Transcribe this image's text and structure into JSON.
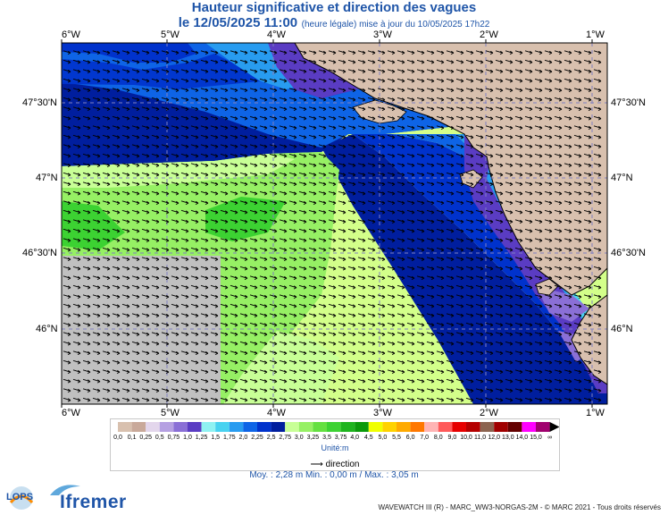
{
  "title": {
    "line1": "Hauteur significative et direction des vagues",
    "date": "le 12/05/2025 11:00",
    "update_note": "(heure légale) mise à jour du 10/05/2025 17h22"
  },
  "axes": {
    "lon_labels": [
      "6°W",
      "5°W",
      "4°W",
      "3°W",
      "2°W",
      "1°W"
    ],
    "lat_labels": [
      "47°30'N",
      "47°N",
      "46°30'N",
      "46°N"
    ]
  },
  "legend": {
    "values": [
      "0,0",
      "0,1",
      "0,25",
      "0,5",
      "0,75",
      "1,0",
      "1,25",
      "1,5",
      "1,75",
      "2,0",
      "2,25",
      "2,5",
      "2,75",
      "3,0",
      "3,25",
      "3,5",
      "3,75",
      "4,0",
      "4,5",
      "5,0",
      "5,5",
      "6,0",
      "7,0",
      "8,0",
      "9,0",
      "10,0",
      "11,0",
      "12,0",
      "13,0",
      "14,0",
      "15,0",
      "∞"
    ],
    "colors": [
      "#d8c0ae",
      "#c9a99a",
      "#e3d6ec",
      "#b5a0e2",
      "#8a6fd6",
      "#5a3cc3",
      "#8ff2f2",
      "#48d2f0",
      "#289cf0",
      "#0e64e6",
      "#0032cc",
      "#001e9e",
      "#c8ff96",
      "#96f064",
      "#64e040",
      "#3cd232",
      "#1eb41e",
      "#0a9a0a",
      "#f0ff00",
      "#ffd200",
      "#ffaa00",
      "#ff7800",
      "#ffb4b4",
      "#ff5a5a",
      "#e60000",
      "#b40000",
      "#8c6450",
      "#a00000",
      "#640000",
      "#ff00ff",
      "#a0006e"
    ],
    "unit_label": "Unité:m",
    "direction_label": "direction"
  },
  "stats": {
    "text": "Moy. : 2,28 m    Min. : 0,00 m / Max. : 3,05 m"
  },
  "footer": {
    "copyright": "WAVEWATCH III (R) - MARC_WW3-NORGAS-2M - © MARC 2021 - Tous droits réservés",
    "logo_lops": "LOPS",
    "logo_ifremer": "Ifremer"
  }
}
